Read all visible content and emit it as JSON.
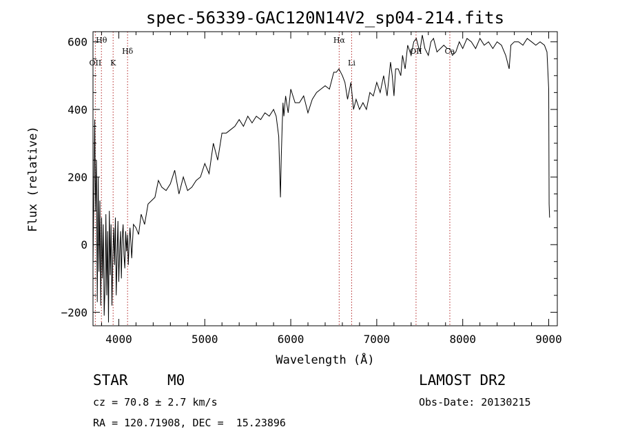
{
  "chart_data": {
    "type": "line",
    "title": "spec-56339-GAC120N14V2_sp04-214.fits",
    "xlabel": "Wavelength (Å)",
    "ylabel": "Flux (relative)",
    "xlim": [
      3700,
      9100
    ],
    "ylim": [
      -240,
      630
    ],
    "xticks": [
      4000,
      5000,
      6000,
      7000,
      8000,
      9000
    ],
    "yticks": [
      -200,
      0,
      200,
      400,
      600
    ],
    "xtick_labels": [
      "4000",
      "5000",
      "6000",
      "7000",
      "8000",
      "9000"
    ],
    "ytick_labels": [
      "−200",
      "0",
      "200",
      "400",
      "600"
    ],
    "grid": false,
    "series": [
      {
        "x": [
          3700,
          3720,
          3730,
          3740,
          3750,
          3760,
          3770,
          3780,
          3790,
          3800,
          3810,
          3820,
          3830,
          3840,
          3850,
          3860,
          3870,
          3880,
          3890,
          3900,
          3910,
          3920,
          3930,
          3940,
          3950,
          3960,
          3970,
          3980,
          3990,
          4000,
          4010,
          4020,
          4030,
          4040,
          4050,
          4060,
          4070,
          4080,
          4090,
          4100,
          4110,
          4120,
          4130,
          4140,
          4150,
          4170,
          4200,
          4230,
          4260,
          4300,
          4340,
          4380,
          4420,
          4460,
          4500,
          4550,
          4600,
          4650,
          4700,
          4750,
          4800,
          4850,
          4900,
          4950,
          5000,
          5050,
          5100,
          5150,
          5200,
          5250,
          5300,
          5350,
          5400,
          5450,
          5500,
          5550,
          5600,
          5650,
          5700,
          5750,
          5800,
          5830,
          5860,
          5880,
          5890,
          5900,
          5910,
          5920,
          5940,
          5970,
          6000,
          6050,
          6100,
          6150,
          6200,
          6250,
          6300,
          6350,
          6400,
          6450,
          6500,
          6530,
          6560,
          6600,
          6630,
          6660,
          6700,
          6730,
          6760,
          6800,
          6840,
          6880,
          6920,
          6960,
          7000,
          7040,
          7080,
          7120,
          7160,
          7180,
          7200,
          7220,
          7250,
          7280,
          7300,
          7330,
          7360,
          7400,
          7430,
          7460,
          7500,
          7530,
          7560,
          7600,
          7630,
          7660,
          7700,
          7740,
          7780,
          7820,
          7850,
          7880,
          7920,
          7960,
          8000,
          8050,
          8100,
          8150,
          8200,
          8250,
          8300,
          8350,
          8400,
          8450,
          8500,
          8540,
          8560,
          8600,
          8650,
          8700,
          8750,
          8800,
          8850,
          8900,
          8950,
          8980,
          9000,
          9005,
          9010
        ],
        "y": [
          -60,
          370,
          100,
          250,
          -170,
          200,
          -80,
          130,
          -180,
          80,
          -100,
          60,
          -210,
          -120,
          90,
          -150,
          40,
          -230,
          100,
          -90,
          60,
          -180,
          -40,
          50,
          -60,
          80,
          -150,
          -40,
          70,
          -110,
          -20,
          40,
          -100,
          20,
          60,
          -30,
          -70,
          40,
          -20,
          30,
          -60,
          0,
          50,
          10,
          -40,
          60,
          50,
          30,
          90,
          60,
          120,
          130,
          140,
          190,
          170,
          160,
          180,
          220,
          150,
          200,
          160,
          170,
          190,
          200,
          240,
          210,
          300,
          250,
          330,
          330,
          340,
          350,
          370,
          350,
          380,
          360,
          380,
          370,
          390,
          380,
          400,
          380,
          320,
          140,
          260,
          350,
          420,
          380,
          440,
          390,
          460,
          420,
          420,
          440,
          390,
          430,
          450,
          460,
          470,
          460,
          510,
          510,
          520,
          500,
          480,
          430,
          480,
          400,
          430,
          400,
          420,
          400,
          450,
          440,
          480,
          450,
          500,
          440,
          540,
          500,
          440,
          520,
          520,
          500,
          560,
          520,
          590,
          560,
          600,
          610,
          570,
          620,
          580,
          560,
          600,
          610,
          570,
          580,
          590,
          580,
          580,
          560,
          570,
          600,
          580,
          610,
          600,
          580,
          610,
          590,
          600,
          580,
          600,
          590,
          560,
          520,
          590,
          600,
          600,
          590,
          610,
          600,
          590,
          600,
          590,
          570,
          460,
          120,
          80
        ]
      }
    ],
    "spectral_lines": [
      {
        "label": "OII",
        "wavelength": 3727,
        "row": "low"
      },
      {
        "label": "Hθ",
        "wavelength": 3798,
        "row": "high"
      },
      {
        "label": "K",
        "wavelength": 3934,
        "row": "low"
      },
      {
        "label": "Hδ",
        "wavelength": 4102,
        "row": "mid"
      },
      {
        "label": "Hα",
        "wavelength": 6563,
        "row": "high"
      },
      {
        "label": "Li",
        "wavelength": 6708,
        "row": "low"
      },
      {
        "label": "OII",
        "wavelength": 7457,
        "row": "mid2"
      },
      {
        "label": "Ca",
        "wavelength": 7850,
        "row": "mid3"
      }
    ]
  },
  "info": {
    "object_type": "STAR",
    "subclass": "M0",
    "survey": "LAMOST DR2",
    "redshift": "cz = 70.8 ± 2.7 km/s",
    "obs_date": "Obs-Date: 20130215",
    "coords": "RA = 120.71908, DEC =  15.23896"
  },
  "colors": {
    "spectrum": "#000000",
    "line_markers": "#b22222"
  }
}
